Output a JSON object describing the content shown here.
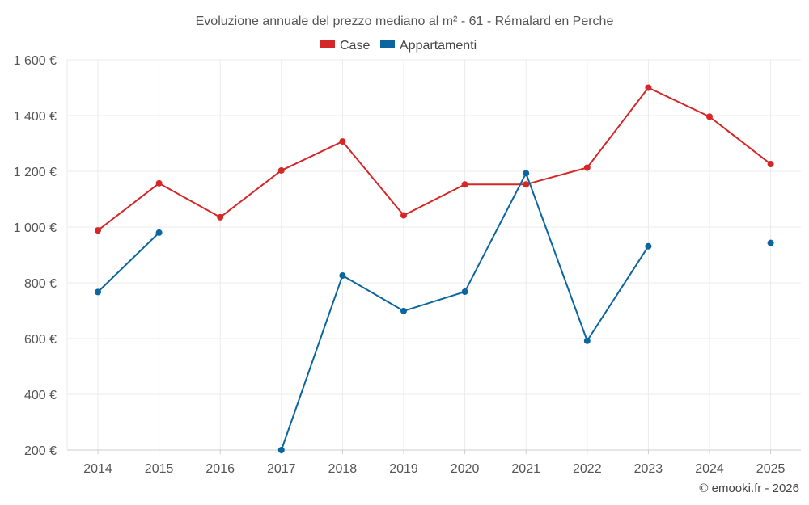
{
  "chart_data": {
    "type": "line",
    "title": "Evoluzione annuale del prezzo mediano al m² - 61 - Rémalard en Perche",
    "categories": [
      "2014",
      "2015",
      "2016",
      "2017",
      "2018",
      "2019",
      "2020",
      "2021",
      "2022",
      "2023",
      "2024",
      "2025"
    ],
    "yticks": [
      200,
      400,
      600,
      800,
      1000,
      1200,
      1400,
      1600
    ],
    "ytick_labels": [
      "200 €",
      "400 €",
      "600 €",
      "800 €",
      "1 000 €",
      "1 200 €",
      "1 400 €",
      "1 600 €"
    ],
    "ylim": [
      200,
      1600
    ],
    "xlabel": "",
    "ylabel": "",
    "grid": true,
    "legend_position": "top-center",
    "series": [
      {
        "name": "Case",
        "color": "#d62728",
        "values": [
          988,
          1157,
          1035,
          1203,
          1307,
          1042,
          1153,
          1153,
          1213,
          1500,
          1396,
          1226
        ]
      },
      {
        "name": "Appartamenti",
        "color": "#0b66a0",
        "values": [
          767,
          980,
          null,
          200,
          826,
          699,
          768,
          1193,
          592,
          931,
          null,
          943
        ]
      }
    ]
  },
  "credit": "© emooki.fr - 2026"
}
